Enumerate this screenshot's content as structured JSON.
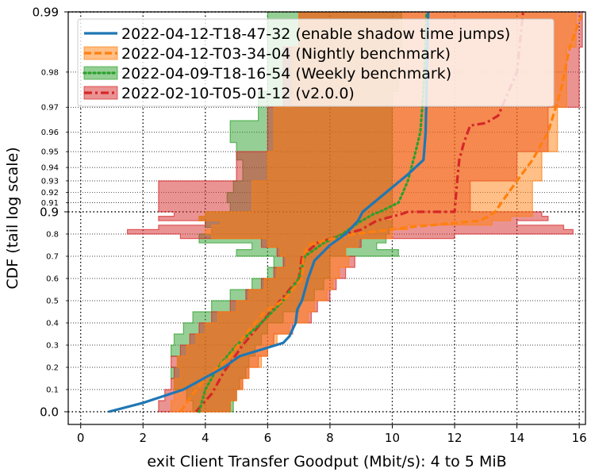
{
  "chart_data": {
    "type": "line",
    "title": "",
    "xlabel": "exit Client Transfer Goodput (Mbit/s): 4 to 5 MiB",
    "ylabel": "CDF (tail log scale)",
    "xlim": [
      -0.4,
      16.2
    ],
    "y_scale": "tail log",
    "x_ticks": [
      0,
      2,
      4,
      6,
      8,
      10,
      12,
      14,
      16
    ],
    "y_ticks_major": [
      {
        "value": 0.0,
        "label": "0.0"
      },
      {
        "value": 0.9,
        "label": "0.9"
      },
      {
        "value": 0.99,
        "label": "0.99"
      }
    ],
    "y_ticks_minor": [
      {
        "value": 0.1,
        "label": "0.1"
      },
      {
        "value": 0.2,
        "label": "0.2"
      },
      {
        "value": 0.3,
        "label": "0.3"
      },
      {
        "value": 0.4,
        "label": "0.4"
      },
      {
        "value": 0.5,
        "label": "0.5"
      },
      {
        "value": 0.6,
        "label": "0.6"
      },
      {
        "value": 0.7,
        "label": "0.7"
      },
      {
        "value": 0.8,
        "label": "0.8"
      },
      {
        "value": 0.91,
        "label": "0.91"
      },
      {
        "value": 0.92,
        "label": "0.92"
      },
      {
        "value": 0.93,
        "label": "0.93"
      },
      {
        "value": 0.94,
        "label": "0.94"
      },
      {
        "value": 0.95,
        "label": "0.95"
      },
      {
        "value": 0.96,
        "label": "0.96"
      },
      {
        "value": 0.97,
        "label": "0.97"
      },
      {
        "value": 0.98,
        "label": "0.98"
      }
    ],
    "grid": true,
    "legend_position": "upper-left",
    "series": [
      {
        "name": "2022-04-12-T18-47-32 (enable shadow time jumps)",
        "color": "#1f77b4",
        "dash": "solid",
        "points": [
          [
            0.9,
            0.0
          ],
          [
            2.0,
            0.04
          ],
          [
            3.3,
            0.1
          ],
          [
            4.6,
            0.2
          ],
          [
            5.1,
            0.25
          ],
          [
            5.8,
            0.28
          ],
          [
            6.5,
            0.31
          ],
          [
            6.7,
            0.34
          ],
          [
            6.9,
            0.4
          ],
          [
            6.95,
            0.46
          ],
          [
            7.1,
            0.5
          ],
          [
            7.2,
            0.55
          ],
          [
            7.3,
            0.6
          ],
          [
            7.5,
            0.68
          ],
          [
            8.0,
            0.75
          ],
          [
            8.5,
            0.8
          ],
          [
            8.9,
            0.86
          ],
          [
            9.05,
            0.9
          ],
          [
            9.8,
            0.92
          ],
          [
            10.5,
            0.935
          ],
          [
            11.0,
            0.945
          ],
          [
            11.07,
            0.96
          ],
          [
            11.1,
            0.975
          ],
          [
            11.15,
            0.99
          ]
        ]
      },
      {
        "name": "2022-04-12-T03-34-04 (Nightly benchmark)",
        "color": "#ff7f0e",
        "dash": "dashed",
        "points": [
          [
            3.2,
            0.0
          ],
          [
            3.6,
            0.08
          ],
          [
            4.0,
            0.15
          ],
          [
            4.8,
            0.25
          ],
          [
            5.3,
            0.35
          ],
          [
            5.9,
            0.45
          ],
          [
            6.5,
            0.5
          ],
          [
            7.1,
            0.6
          ],
          [
            7.15,
            0.7
          ],
          [
            7.3,
            0.75
          ],
          [
            7.8,
            0.77
          ],
          [
            8.8,
            0.8
          ],
          [
            10.5,
            0.83
          ],
          [
            12.8,
            0.86
          ],
          [
            13.1,
            0.88
          ],
          [
            13.3,
            0.9
          ],
          [
            13.5,
            0.91
          ],
          [
            14.0,
            0.93
          ],
          [
            14.5,
            0.945
          ],
          [
            15.0,
            0.96
          ],
          [
            15.4,
            0.975
          ],
          [
            15.7,
            0.985
          ],
          [
            16.1,
            0.99
          ]
        ]
      },
      {
        "name": "2022-04-09-T18-16-54 (Weekly benchmark)",
        "color": "#2ca02c",
        "dash": "dotted",
        "points": [
          [
            3.8,
            0.0
          ],
          [
            4.0,
            0.1
          ],
          [
            4.4,
            0.2
          ],
          [
            5.0,
            0.3
          ],
          [
            5.8,
            0.4
          ],
          [
            6.5,
            0.5
          ],
          [
            7.0,
            0.6
          ],
          [
            7.2,
            0.7
          ],
          [
            7.8,
            0.76
          ],
          [
            8.4,
            0.8
          ],
          [
            8.9,
            0.85
          ],
          [
            9.4,
            0.89
          ],
          [
            9.6,
            0.9
          ],
          [
            10.2,
            0.91
          ],
          [
            10.5,
            0.93
          ],
          [
            10.75,
            0.95
          ],
          [
            10.9,
            0.96
          ],
          [
            11.0,
            0.975
          ],
          [
            11.1,
            0.99
          ]
        ]
      },
      {
        "name": "2022-02-10-T05-01-12 (v2.0.0)",
        "color": "#d62728",
        "dash": "dashdot",
        "points": [
          [
            3.7,
            0.0
          ],
          [
            4.2,
            0.08
          ],
          [
            4.6,
            0.18
          ],
          [
            5.2,
            0.3
          ],
          [
            5.8,
            0.4
          ],
          [
            6.4,
            0.5
          ],
          [
            7.0,
            0.6
          ],
          [
            7.1,
            0.7
          ],
          [
            7.6,
            0.76
          ],
          [
            8.5,
            0.8
          ],
          [
            9.0,
            0.82
          ],
          [
            9.5,
            0.86
          ],
          [
            10.3,
            0.89
          ],
          [
            10.5,
            0.9
          ],
          [
            12.0,
            0.9
          ],
          [
            12.1,
            0.935
          ],
          [
            12.15,
            0.945
          ],
          [
            12.3,
            0.955
          ],
          [
            12.5,
            0.963
          ],
          [
            13.0,
            0.964
          ],
          [
            13.4,
            0.967
          ],
          [
            14.0,
            0.98
          ],
          [
            14.2,
            0.99
          ]
        ]
      }
    ],
    "bands": [
      {
        "series": "2022-04-09-T18-16-54 (Weekly benchmark)",
        "color": "#2ca02c",
        "steps": [
          [
            0.0,
            3.6,
            4.9
          ],
          [
            0.05,
            3.4,
            5.0
          ],
          [
            0.1,
            3.0,
            5.1
          ],
          [
            0.15,
            2.9,
            5.3
          ],
          [
            0.2,
            3.1,
            5.4
          ],
          [
            0.25,
            2.9,
            5.6
          ],
          [
            0.3,
            3.0,
            5.8
          ],
          [
            0.35,
            3.3,
            6.0
          ],
          [
            0.4,
            3.6,
            6.5
          ],
          [
            0.45,
            4.2,
            7.0
          ],
          [
            0.5,
            4.8,
            7.5
          ],
          [
            0.55,
            5.5,
            7.8
          ],
          [
            0.6,
            6.0,
            8.0
          ],
          [
            0.65,
            6.2,
            8.0
          ],
          [
            0.7,
            5.0,
            10.2
          ],
          [
            0.73,
            5.5,
            9.5
          ],
          [
            0.76,
            3.8,
            9.8
          ],
          [
            0.8,
            4.2,
            9.9
          ],
          [
            0.83,
            4.0,
            10.0
          ],
          [
            0.86,
            3.8,
            9.8
          ],
          [
            0.88,
            4.0,
            10.0
          ],
          [
            0.9,
            4.8,
            10.0
          ],
          [
            0.91,
            4.7,
            10.0
          ],
          [
            0.92,
            4.9,
            10.0
          ],
          [
            0.93,
            5.2,
            10.0
          ],
          [
            0.945,
            5.0,
            10.0
          ],
          [
            0.955,
            4.8,
            10.0
          ],
          [
            0.965,
            5.7,
            10.0
          ],
          [
            0.975,
            6.0,
            10.2
          ],
          [
            0.985,
            6.0,
            10.3
          ]
        ]
      },
      {
        "series": "2022-02-10-T05-01-12 (v2.0.0)",
        "color": "#d62728",
        "steps": [
          [
            0.0,
            2.5,
            4.8
          ],
          [
            0.05,
            2.7,
            5.0
          ],
          [
            0.1,
            2.9,
            5.2
          ],
          [
            0.15,
            3.0,
            5.4
          ],
          [
            0.2,
            2.9,
            5.7
          ],
          [
            0.25,
            3.2,
            6.0
          ],
          [
            0.3,
            3.5,
            6.2
          ],
          [
            0.35,
            3.8,
            6.8
          ],
          [
            0.4,
            4.2,
            7.4
          ],
          [
            0.45,
            4.8,
            7.6
          ],
          [
            0.5,
            5.3,
            8.0
          ],
          [
            0.55,
            5.8,
            8.2
          ],
          [
            0.6,
            6.2,
            8.5
          ],
          [
            0.65,
            6.5,
            8.8
          ],
          [
            0.7,
            6.3,
            8.5
          ],
          [
            0.74,
            5.8,
            9.0
          ],
          [
            0.78,
            3.2,
            12.0
          ],
          [
            0.8,
            1.5,
            15.8
          ],
          [
            0.82,
            2.5,
            15.5
          ],
          [
            0.84,
            4.0,
            14.0
          ],
          [
            0.86,
            2.5,
            15.0
          ],
          [
            0.88,
            3.0,
            14.8
          ],
          [
            0.9,
            2.5,
            12.5
          ],
          [
            0.93,
            5.0,
            14.0
          ],
          [
            0.95,
            6.0,
            15.0
          ],
          [
            0.97,
            6.5,
            16.0
          ],
          [
            0.985,
            7.0,
            16.1
          ]
        ]
      },
      {
        "series": "2022-04-12-T03-34-04 (Nightly benchmark)",
        "color": "#ff7f0e",
        "steps": [
          [
            0.0,
            2.9,
            4.8
          ],
          [
            0.05,
            3.0,
            5.0
          ],
          [
            0.1,
            3.0,
            5.2
          ],
          [
            0.15,
            3.2,
            5.4
          ],
          [
            0.2,
            3.1,
            5.8
          ],
          [
            0.25,
            3.4,
            6.0
          ],
          [
            0.3,
            3.7,
            6.3
          ],
          [
            0.35,
            4.0,
            6.7
          ],
          [
            0.4,
            4.4,
            7.3
          ],
          [
            0.45,
            5.0,
            7.5
          ],
          [
            0.5,
            5.4,
            7.9
          ],
          [
            0.55,
            5.9,
            8.1
          ],
          [
            0.6,
            6.3,
            8.3
          ],
          [
            0.65,
            6.6,
            8.6
          ],
          [
            0.7,
            6.4,
            8.5
          ],
          [
            0.74,
            6.0,
            8.9
          ],
          [
            0.78,
            4.2,
            10.0
          ],
          [
            0.8,
            4.0,
            10.0
          ],
          [
            0.82,
            4.2,
            10.5
          ],
          [
            0.84,
            4.5,
            13.2
          ],
          [
            0.86,
            3.8,
            13.8
          ],
          [
            0.88,
            4.0,
            14.5
          ],
          [
            0.9,
            5.5,
            14.5
          ],
          [
            0.93,
            6.0,
            14.8
          ],
          [
            0.95,
            6.2,
            15.3
          ],
          [
            0.97,
            6.8,
            15.6
          ],
          [
            0.985,
            7.0,
            15.9
          ]
        ]
      }
    ]
  }
}
